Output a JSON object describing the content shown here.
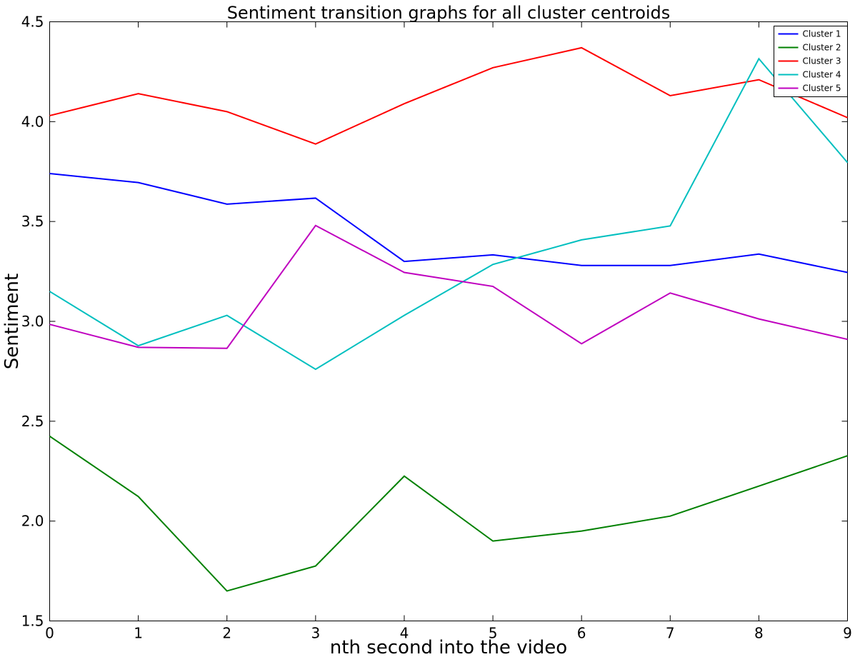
{
  "chart_data": {
    "type": "line",
    "title": "Sentiment transition graphs for all cluster centroids",
    "xlabel": "nth second into the video",
    "ylabel": "Sentiment",
    "x": [
      0,
      1,
      2,
      3,
      4,
      5,
      6,
      7,
      8,
      9
    ],
    "xlim": [
      0,
      9
    ],
    "ylim": [
      1.5,
      4.5
    ],
    "xticks": [
      "0",
      "1",
      "2",
      "3",
      "4",
      "5",
      "6",
      "7",
      "8",
      "9"
    ],
    "yticks": [
      "1.5",
      "2.0",
      "2.5",
      "3.0",
      "3.5",
      "4.0",
      "4.5"
    ],
    "grid": false,
    "legend_position": "top-right",
    "series": [
      {
        "name": "Cluster 1",
        "color": "#0000ff",
        "values": [
          3.74,
          3.695,
          3.587,
          3.617,
          3.3,
          3.333,
          3.28,
          3.28,
          3.337,
          3.245
        ]
      },
      {
        "name": "Cluster 2",
        "color": "#008000",
        "values": [
          2.425,
          2.123,
          1.65,
          1.775,
          2.225,
          1.9,
          1.95,
          2.025,
          2.175,
          2.327
        ]
      },
      {
        "name": "Cluster 3",
        "color": "#ff0000",
        "values": [
          4.03,
          4.14,
          4.05,
          3.888,
          4.09,
          4.27,
          4.37,
          4.13,
          4.21,
          4.02
        ]
      },
      {
        "name": "Cluster 4",
        "color": "#00bfbf",
        "values": [
          3.15,
          2.878,
          3.03,
          2.76,
          3.03,
          3.285,
          3.408,
          3.478,
          4.315,
          3.795
        ]
      },
      {
        "name": "Cluster 5",
        "color": "#bf00bf",
        "values": [
          2.985,
          2.87,
          2.865,
          3.48,
          3.245,
          3.175,
          2.888,
          3.142,
          3.012,
          2.91
        ]
      }
    ]
  }
}
